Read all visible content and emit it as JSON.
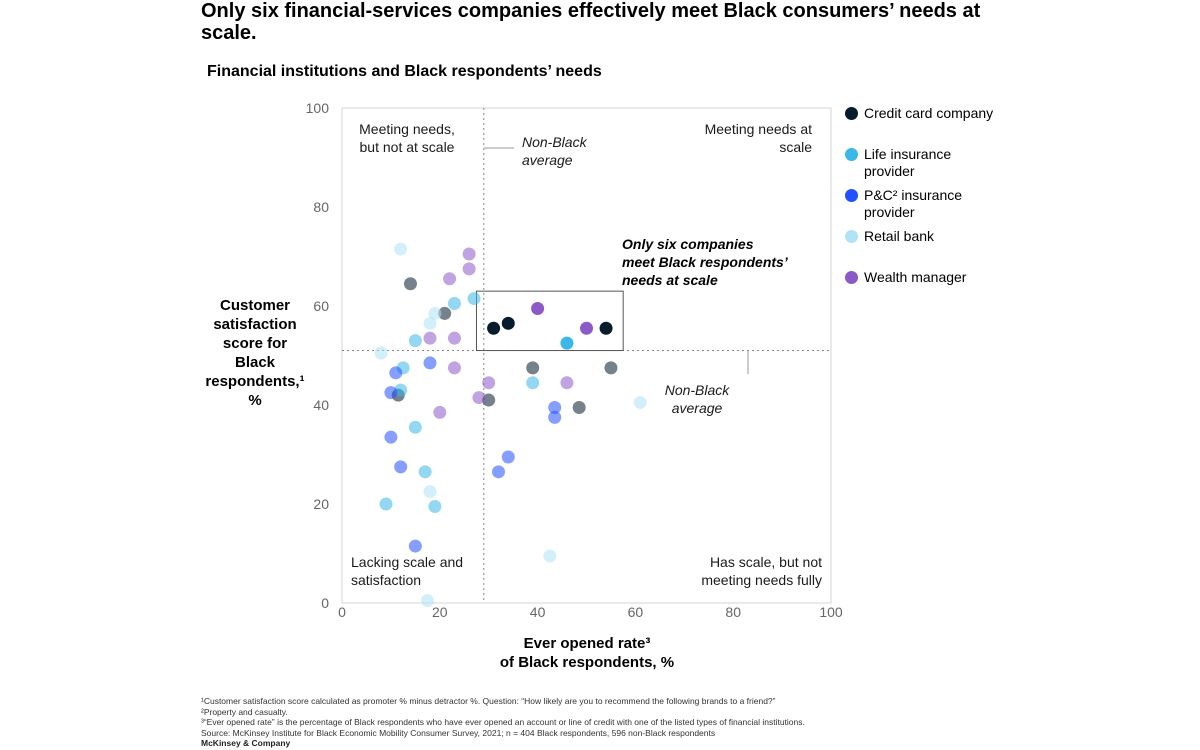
{
  "title": "Only six financial-services companies effectively meet Black consumers’ needs at scale.",
  "subtitle": "Financial institutions and Black respondents’ needs",
  "chart_data": {
    "type": "scatter",
    "xlabel": [
      "Ever opened rate³",
      "of Black respondents, %"
    ],
    "ylabel": [
      "Customer",
      "satisfaction",
      "score for",
      "Black",
      "respondents,¹",
      "%"
    ],
    "xlim": [
      0,
      100
    ],
    "ylim": [
      0,
      100
    ],
    "xticks": [
      "0",
      "20",
      "40",
      "60",
      "80",
      "100"
    ],
    "yticks": [
      "0",
      "20",
      "40",
      "60",
      "80",
      "100"
    ],
    "grid": false,
    "legend_position": "right",
    "reference_lines": {
      "non_black_average_x": 29,
      "non_black_average_y": 51
    },
    "quadrant_labels": {
      "top_left": [
        "Meeting needs,",
        "but not at scale"
      ],
      "top_right": [
        "Meeting needs at",
        "scale"
      ],
      "bottom_left": [
        "Lacking scale and",
        "satisfaction"
      ],
      "bottom_right": [
        "Has scale, but not",
        "meeting needs fully"
      ]
    },
    "average_labels": {
      "vertical": [
        "Non-Black",
        "average"
      ],
      "horizontal": [
        "Non-Black",
        "average"
      ]
    },
    "callout": [
      "Only six companies",
      "meet Black respondents’",
      "needs at scale"
    ],
    "callout_box": {
      "x": [
        27.5,
        57.5
      ],
      "y": [
        51,
        63
      ]
    },
    "series": [
      {
        "name": "Credit card company",
        "color": "#051c2c",
        "points": [
          [
            31,
            55.5
          ],
          [
            34,
            56.5
          ],
          [
            54,
            55.5
          ],
          [
            14,
            64.5
          ],
          [
            21,
            58.5
          ],
          [
            11.5,
            42
          ],
          [
            39,
            47.5
          ],
          [
            55,
            47.5
          ],
          [
            30,
            41
          ],
          [
            48.5,
            39.5
          ]
        ]
      },
      {
        "name": "Life insurance provider",
        "color": "#3bb7e8",
        "points": [
          [
            27,
            61.5
          ],
          [
            23,
            60.5
          ],
          [
            15,
            53
          ],
          [
            12.5,
            47.5
          ],
          [
            12,
            43
          ],
          [
            39,
            44.5
          ],
          [
            46,
            52.5
          ],
          [
            15,
            35.5
          ],
          [
            17,
            26.5
          ],
          [
            19,
            19.5
          ],
          [
            9,
            20
          ]
        ]
      },
      {
        "name": "P&C² insurance provider",
        "color": "#2251ff",
        "points": [
          [
            11,
            46.5
          ],
          [
            10,
            42.5
          ],
          [
            18,
            48.5
          ],
          [
            10,
            33.5
          ],
          [
            12,
            27.5
          ],
          [
            15,
            11.5
          ],
          [
            43.5,
            39.5
          ],
          [
            43.5,
            37.5
          ],
          [
            34,
            29.5
          ],
          [
            32,
            26.5
          ]
        ]
      },
      {
        "name": "Retail bank",
        "color": "#afe3f5",
        "points": [
          [
            12,
            71.5
          ],
          [
            19,
            58.5
          ],
          [
            18,
            56.5
          ],
          [
            8,
            50.5
          ],
          [
            18,
            22.5
          ],
          [
            17.5,
            0.5
          ],
          [
            42.5,
            9.5
          ],
          [
            61,
            40.5
          ]
        ]
      },
      {
        "name": "Wealth manager",
        "color": "#8c5ac8",
        "points": [
          [
            26,
            70.5
          ],
          [
            26,
            67.5
          ],
          [
            22,
            65.5
          ],
          [
            18,
            53.5
          ],
          [
            23,
            53.5
          ],
          [
            23,
            47.5
          ],
          [
            20,
            38.5
          ],
          [
            28,
            41.5
          ],
          [
            30,
            44.5
          ],
          [
            46,
            44.5
          ],
          [
            40,
            59.5
          ],
          [
            50,
            55.5
          ]
        ]
      }
    ]
  },
  "footnotes": [
    "¹Customer satisfaction score calculated as promoter % minus detractor %. Question: “How likely are you to recommend the following brands to a friend?”",
    "²Property and casualty.",
    "³“Ever opened rate” is the percentage of Black respondents who have ever opened an account or line of credit with one of the listed types of financial institutions.",
    "Source: McKinsey Institute for Black Economic Mobility Consumer Survey, 2021; n = 404 Black respondents, 596 non-Black respondents"
  ],
  "brand": "McKinsey & Company"
}
